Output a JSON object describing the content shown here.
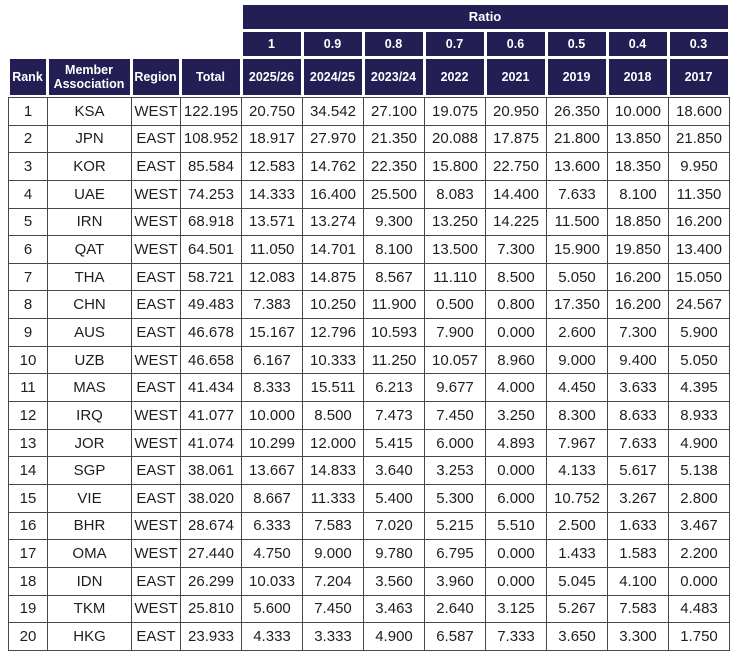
{
  "colors": {
    "header_bg": "#231f54",
    "header_text": "#ffffff",
    "grid_line": "#474747",
    "cell_text": "#1e1e1e",
    "cell_bg": "#ffffff"
  },
  "chart_data": {
    "type": "table",
    "ratio_label": "Ratio",
    "ratio_values": [
      "1",
      "0.9",
      "0.8",
      "0.7",
      "0.6",
      "0.5",
      "0.4",
      "0.3"
    ],
    "columns": [
      "Rank",
      "Member Association",
      "Region",
      "Total",
      "2025/26",
      "2024/25",
      "2023/24",
      "2022",
      "2021",
      "2019",
      "2018",
      "2017"
    ],
    "rows": [
      [
        "1",
        "KSA",
        "WEST",
        "122.195",
        "20.750",
        "34.542",
        "27.100",
        "19.075",
        "20.950",
        "26.350",
        "10.000",
        "18.600"
      ],
      [
        "2",
        "JPN",
        "EAST",
        "108.952",
        "18.917",
        "27.970",
        "21.350",
        "20.088",
        "17.875",
        "21.800",
        "13.850",
        "21.850"
      ],
      [
        "3",
        "KOR",
        "EAST",
        "85.584",
        "12.583",
        "14.762",
        "22.350",
        "15.800",
        "22.750",
        "13.600",
        "18.350",
        "9.950"
      ],
      [
        "4",
        "UAE",
        "WEST",
        "74.253",
        "14.333",
        "16.400",
        "25.500",
        "8.083",
        "14.400",
        "7.633",
        "8.100",
        "11.350"
      ],
      [
        "5",
        "IRN",
        "WEST",
        "68.918",
        "13.571",
        "13.274",
        "9.300",
        "13.250",
        "14.225",
        "11.500",
        "18.850",
        "16.200"
      ],
      [
        "6",
        "QAT",
        "WEST",
        "64.501",
        "11.050",
        "14.701",
        "8.100",
        "13.500",
        "7.300",
        "15.900",
        "19.850",
        "13.400"
      ],
      [
        "7",
        "THA",
        "EAST",
        "58.721",
        "12.083",
        "14.875",
        "8.567",
        "11.110",
        "8.500",
        "5.050",
        "16.200",
        "15.050"
      ],
      [
        "8",
        "CHN",
        "EAST",
        "49.483",
        "7.383",
        "10.250",
        "11.900",
        "0.500",
        "0.800",
        "17.350",
        "16.200",
        "24.567"
      ],
      [
        "9",
        "AUS",
        "EAST",
        "46.678",
        "15.167",
        "12.796",
        "10.593",
        "7.900",
        "0.000",
        "2.600",
        "7.300",
        "5.900"
      ],
      [
        "10",
        "UZB",
        "WEST",
        "46.658",
        "6.167",
        "10.333",
        "11.250",
        "10.057",
        "8.960",
        "9.000",
        "9.400",
        "5.050"
      ],
      [
        "11",
        "MAS",
        "EAST",
        "41.434",
        "8.333",
        "15.511",
        "6.213",
        "9.677",
        "4.000",
        "4.450",
        "3.633",
        "4.395"
      ],
      [
        "12",
        "IRQ",
        "WEST",
        "41.077",
        "10.000",
        "8.500",
        "7.473",
        "7.450",
        "3.250",
        "8.300",
        "8.633",
        "8.933"
      ],
      [
        "13",
        "JOR",
        "WEST",
        "41.074",
        "10.299",
        "12.000",
        "5.415",
        "6.000",
        "4.893",
        "7.967",
        "7.633",
        "4.900"
      ],
      [
        "14",
        "SGP",
        "EAST",
        "38.061",
        "13.667",
        "14.833",
        "3.640",
        "3.253",
        "0.000",
        "4.133",
        "5.617",
        "5.138"
      ],
      [
        "15",
        "VIE",
        "EAST",
        "38.020",
        "8.667",
        "11.333",
        "5.400",
        "5.300",
        "6.000",
        "10.752",
        "3.267",
        "2.800"
      ],
      [
        "16",
        "BHR",
        "WEST",
        "28.674",
        "6.333",
        "7.583",
        "7.020",
        "5.215",
        "5.510",
        "2.500",
        "1.633",
        "3.467"
      ],
      [
        "17",
        "OMA",
        "WEST",
        "27.440",
        "4.750",
        "9.000",
        "9.780",
        "6.795",
        "0.000",
        "1.433",
        "1.583",
        "2.200"
      ],
      [
        "18",
        "IDN",
        "EAST",
        "26.299",
        "10.033",
        "7.204",
        "3.560",
        "3.960",
        "0.000",
        "5.045",
        "4.100",
        "0.000"
      ],
      [
        "19",
        "TKM",
        "WEST",
        "25.810",
        "5.600",
        "7.450",
        "3.463",
        "2.640",
        "3.125",
        "5.267",
        "7.583",
        "4.483"
      ],
      [
        "20",
        "HKG",
        "EAST",
        "23.933",
        "4.333",
        "3.333",
        "4.900",
        "6.587",
        "7.333",
        "3.650",
        "3.300",
        "1.750"
      ]
    ]
  }
}
